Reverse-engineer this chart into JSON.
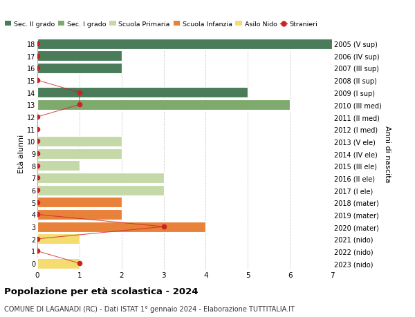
{
  "ages": [
    18,
    17,
    16,
    15,
    14,
    13,
    12,
    11,
    10,
    9,
    8,
    7,
    6,
    5,
    4,
    3,
    2,
    1,
    0
  ],
  "years": [
    "2005 (V sup)",
    "2006 (IV sup)",
    "2007 (III sup)",
    "2008 (II sup)",
    "2009 (I sup)",
    "2010 (III med)",
    "2011 (II med)",
    "2012 (I med)",
    "2013 (V ele)",
    "2014 (IV ele)",
    "2015 (III ele)",
    "2016 (II ele)",
    "2017 (I ele)",
    "2018 (mater)",
    "2019 (mater)",
    "2020 (mater)",
    "2021 (nido)",
    "2022 (nido)",
    "2023 (nido)"
  ],
  "bar_values": [
    7,
    2,
    2,
    0,
    5,
    6,
    0,
    0,
    2,
    2,
    1,
    3,
    3,
    2,
    2,
    4,
    1,
    0,
    1
  ],
  "bar_colors": [
    "#4a7c59",
    "#4a7c59",
    "#4a7c59",
    "#4a7c59",
    "#4a7c59",
    "#7faa6e",
    "#7faa6e",
    "#7faa6e",
    "#c5d9a8",
    "#c5d9a8",
    "#c5d9a8",
    "#c5d9a8",
    "#c5d9a8",
    "#e8823a",
    "#e8823a",
    "#e8823a",
    "#f5dc70",
    "#f5dc70",
    "#f5dc70"
  ],
  "stranieri_by_age": {
    "18": 0,
    "17": 0,
    "16": 0,
    "15": 0,
    "14": 1,
    "13": 1,
    "12": 0,
    "11": 0,
    "10": 0,
    "9": 0,
    "8": 0,
    "7": 0,
    "6": 0,
    "5": 0,
    "4": 0,
    "3": 3,
    "2": 0,
    "1": 0,
    "0": 1
  },
  "colors": {
    "sec2": "#4a7c59",
    "sec1": "#7faa6e",
    "primaria": "#c5d9a8",
    "infanzia": "#e8823a",
    "nido": "#f5dc70",
    "stranieri": "#cc2222"
  },
  "xlim": [
    0,
    7
  ],
  "background_color": "#ffffff",
  "grid_color": "#cccccc",
  "title": "Popolazione per età scolastica - 2024",
  "subtitle": "COMUNE DI LAGANADI (RC) - Dati ISTAT 1° gennaio 2024 - Elaborazione TUTTITALIA.IT",
  "ylabel_left": "Età alunni",
  "ylabel_right": "Anni di nascita"
}
